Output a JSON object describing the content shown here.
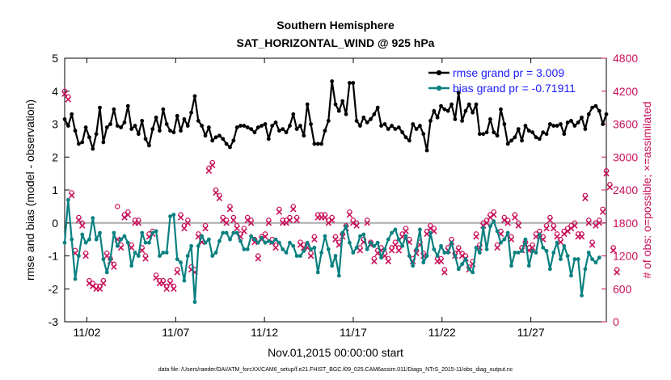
{
  "chart_data": {
    "type": "line",
    "title": [
      "Southern Hemisphere",
      "SAT_HORIZONTAL_WIND @ 925 hPa"
    ],
    "xlabel": "Nov.01,2015 00:00:00 start",
    "ylabel_left": "rmse and bias (model - observation)",
    "ylabel_right": "# of obs: o=possible; ×=assimilated",
    "footnote": "data file: /Users/raeder/DAI/ATM_forcXX/CAM6_setup/f.e21.FHIST_BGC.f09_025.CAM6assim.011/Diags_NTrS_2015-11/obs_diag_output.nc",
    "x_range": [
      0.75,
      31.25
    ],
    "x_ticks": [
      2,
      7,
      12,
      17,
      22,
      27
    ],
    "x_tick_labels": [
      "11/02",
      "11/07",
      "11/12",
      "11/17",
      "11/22",
      "11/27"
    ],
    "ylim_left": [
      -3,
      5
    ],
    "yticks_left": [
      "-3",
      "-2",
      "-1",
      "0",
      "1",
      "2",
      "3",
      "4",
      "5"
    ],
    "ylim_right": [
      0,
      4800
    ],
    "yticks_right": [
      "0",
      "600",
      "1200",
      "1800",
      "2400",
      "3000",
      "3600",
      "4200",
      "4800"
    ],
    "zero_line": 0,
    "colors": {
      "rmse": "#000000",
      "bias": "#0a8080",
      "obs": "#c8105a",
      "legend_text": "#1a1aff",
      "zero_line": "#aaaaaa"
    },
    "legend": [
      {
        "name": "rmse",
        "label": "rmse grand pr = 3.009"
      },
      {
        "name": "bias",
        "label": "bias grand pr = -0.71911"
      }
    ],
    "rmse": [
      3.15,
      2.95,
      3.3,
      2.8,
      2.4,
      2.45,
      2.9,
      2.6,
      2.25,
      2.7,
      3.5,
      2.45,
      2.9,
      3.0,
      3.45,
      2.95,
      2.9,
      3.05,
      3.55,
      2.85,
      2.95,
      2.7,
      3.1,
      2.55,
      2.35,
      2.85,
      3.2,
      2.8,
      3.45,
      3.0,
      2.8,
      2.75,
      3.25,
      2.8,
      3.15,
      2.95,
      3.35,
      3.85,
      3.1,
      2.95,
      2.65,
      2.9,
      2.5,
      2.6,
      2.65,
      2.55,
      2.4,
      2.3,
      2.5,
      2.9,
      2.95,
      2.95,
      2.9,
      2.85,
      2.75,
      2.9,
      2.95,
      3.0,
      2.55,
      2.95,
      3.05,
      2.8,
      2.85,
      2.75,
      2.95,
      3.3,
      2.85,
      2.95,
      2.65,
      3.6,
      3.0,
      2.4,
      2.4,
      2.4,
      2.8,
      3.1,
      4.3,
      3.6,
      3.4,
      3.7,
      3.3,
      4.25,
      4.25,
      3.1,
      2.95,
      3.2,
      3.05,
      3.15,
      3.3,
      3.5,
      2.95,
      3.0,
      2.85,
      2.95,
      2.85,
      2.9,
      2.75,
      2.6,
      2.5,
      3.0,
      2.85,
      2.95,
      2.7,
      2.2,
      3.1,
      3.4,
      3.2,
      3.55,
      3.45,
      3.4,
      3.6,
      3.15,
      3.95,
      3.1,
      3.4,
      3.6,
      3.35,
      3.6,
      2.7,
      2.7,
      2.75,
      3.15,
      2.75,
      2.65,
      3.45,
      3.0,
      2.4,
      2.5,
      2.6,
      2.85,
      2.5,
      2.95,
      2.8,
      2.75,
      2.6,
      2.55,
      2.75,
      2.7,
      3.0,
      2.95,
      2.95,
      3.0,
      2.7,
      3.05,
      3.1,
      2.95,
      3.05,
      3.2,
      2.85,
      3.3,
      3.5,
      3.55,
      3.4,
      3.0,
      3.3
    ],
    "bias": [
      -0.6,
      0.7,
      -0.5,
      -1.7,
      -1.0,
      -0.35,
      -0.6,
      -0.5,
      0.15,
      -0.5,
      -0.3,
      -1.1,
      -1.5,
      -1.1,
      -0.3,
      -0.7,
      -0.5,
      -0.4,
      -0.6,
      -1.3,
      -0.9,
      -1.0,
      -0.3,
      -0.6,
      -0.6,
      -0.3,
      -0.25,
      -1.0,
      -0.9,
      -0.9,
      0.2,
      0.25,
      -1.1,
      -1.2,
      -1.75,
      -1.0,
      -0.7,
      -2.4,
      -0.7,
      -0.4,
      -0.6,
      -0.5,
      -1.0,
      -0.9,
      -0.55,
      -0.3,
      -0.3,
      -0.5,
      -0.3,
      -0.3,
      -0.55,
      -0.8,
      -0.8,
      -0.4,
      -0.5,
      -0.6,
      -0.45,
      -0.6,
      -0.55,
      -0.6,
      -0.5,
      -0.6,
      -0.8,
      -0.9,
      -0.6,
      -0.7,
      -1.0,
      -1.0,
      -0.85,
      -0.6,
      -0.8,
      -0.75,
      -1.5,
      -0.9,
      -0.4,
      -0.8,
      -1.3,
      -1.0,
      -1.6,
      -0.3,
      -0.1,
      -0.6,
      -0.9,
      -0.75,
      -0.4,
      -0.35,
      -0.8,
      -0.6,
      -0.7,
      -0.6,
      -1.05,
      -0.8,
      -0.5,
      -0.3,
      -0.2,
      -0.5,
      -0.7,
      -0.4,
      -1.0,
      -1.3,
      -0.8,
      -0.2,
      -1.2,
      -1.0,
      -0.3,
      -0.8,
      -1.0,
      -0.7,
      -0.9,
      -0.9,
      -0.6,
      -1.0,
      -1.4,
      -1.25,
      -1.1,
      -1.4,
      -1.5,
      -0.75,
      -0.9,
      -0.15,
      -0.8,
      -0.1,
      0.05,
      -0.25,
      -0.6,
      -0.5,
      -0.3,
      -1.3,
      -0.9,
      -0.9,
      -0.85,
      -0.5,
      -1.3,
      -0.85,
      -0.9,
      -0.35,
      -0.75,
      -0.85,
      -1.4,
      -0.9,
      -0.6,
      -1.1,
      -0.7,
      -1.0,
      -1.6,
      -1.1,
      -1.1,
      -2.2,
      -1.4,
      -0.9,
      -1.1,
      -1.2,
      -1.05
    ],
    "obs_assimilated": [
      4150,
      4050,
      2300,
      1250,
      1850,
      1750,
      1200,
      700,
      650,
      600,
      600,
      700,
      1200,
      1100,
      1000,
      1500,
      1350,
      1900,
      1950,
      1350,
      1800,
      1800,
      1300,
      1150,
      1550,
      1600,
      800,
      700,
      700,
      600,
      700,
      600,
      900,
      1900,
      1700,
      1800,
      950,
      900,
      1550,
      1450,
      1700,
      2750,
      2850,
      2350,
      2250,
      1850,
      1800,
      2050,
      1850,
      1700,
      1550,
      1650,
      1850,
      1800,
      1450,
      1150,
      1500,
      1550,
      1800,
      1450,
      1350,
      2000,
      1800,
      1800,
      1850,
      2050,
      1850,
      1400,
      1350,
      1350,
      1200,
      1500,
      1900,
      1900,
      1900,
      1800,
      1850,
      1500,
      1400,
      1550,
      1700,
      1950,
      1800,
      1750,
      1300,
      1450,
      1800,
      1400,
      1100,
      1250,
      1300,
      1200,
      1100,
      1300,
      1400,
      1300,
      1550,
      1650,
      1450,
      1100,
      1250,
      1400,
      1200,
      1600,
      1700,
      1650,
      1100,
      1100,
      900,
      1300,
      1450,
      1200,
      1300,
      1200,
      1150,
      950,
      1050,
      1550,
      1350,
      1750,
      1800,
      1900,
      1950,
      1350,
      1600,
      1850,
      1800,
      1500,
      1900,
      1750,
      1300,
      1400,
      1300,
      1350,
      1550,
      1600,
      1500,
      1700,
      1850,
      1700,
      1550,
      1450,
      1600,
      1650,
      1700,
      1750,
      1550,
      1550,
      2250,
      1800,
      1400,
      1750,
      1800,
      2000,
      2700,
      2450,
      1300,
      900
    ],
    "obs_possible": [
      4200,
      4100,
      2350,
      1300,
      1900,
      1800,
      1250,
      750,
      700,
      650,
      650,
      750,
      1250,
      1150,
      1050,
      2100,
      1400,
      1950,
      2000,
      1400,
      1850,
      1850,
      1350,
      1200,
      1600,
      1650,
      850,
      750,
      750,
      650,
      750,
      650,
      950,
      1950,
      1750,
      1850,
      1000,
      950,
      1600,
      1500,
      1750,
      2800,
      2900,
      2400,
      2300,
      1900,
      1850,
      2100,
      1900,
      1750,
      1600,
      1700,
      1900,
      1850,
      1500,
      1200,
      1550,
      1600,
      1850,
      1500,
      1400,
      2050,
      1850,
      1850,
      1900,
      2100,
      1900,
      1450,
      1400,
      1400,
      1250,
      1550,
      1950,
      1950,
      1950,
      1850,
      1900,
      1550,
      1450,
      1600,
      1750,
      2000,
      1850,
      1800,
      1350,
      1500,
      1850,
      1450,
      1150,
      1300,
      1350,
      1250,
      1150,
      1350,
      1450,
      1350,
      1600,
      1700,
      1500,
      1150,
      1300,
      1450,
      1250,
      1650,
      1750,
      1700,
      1150,
      1150,
      950,
      1350,
      1500,
      1250,
      1350,
      1250,
      1200,
      1000,
      1100,
      1600,
      1400,
      1800,
      1850,
      1950,
      2000,
      1400,
      1650,
      1900,
      1850,
      1550,
      1950,
      1800,
      1350,
      1450,
      1350,
      1400,
      1600,
      1650,
      1550,
      1750,
      1900,
      1750,
      1600,
      1500,
      1650,
      1700,
      1750,
      1800,
      1600,
      1600,
      2300,
      1850,
      1450,
      1800,
      1850,
      2050,
      2750,
      2500,
      1350,
      950
    ]
  }
}
